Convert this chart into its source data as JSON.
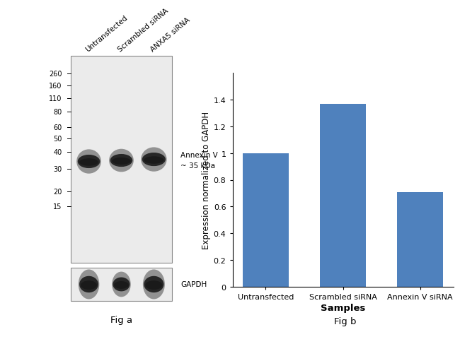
{
  "fig_a_label": "Fig a",
  "fig_b_label": "Fig b",
  "bar_categories": [
    "Untransfected",
    "Scrambled siRNA",
    "Annexin V siRNA"
  ],
  "bar_values": [
    1.0,
    1.37,
    0.71
  ],
  "bar_color": "#4f81bd",
  "ylabel": "Expression normalized to GAPDH",
  "xlabel": "Samples",
  "ylim": [
    0,
    1.6
  ],
  "yticks": [
    0,
    0.2,
    0.4,
    0.6,
    0.8,
    1.0,
    1.2,
    1.4
  ],
  "wb_marker_labels": [
    "260",
    "160",
    "110",
    "80",
    "60",
    "50",
    "40",
    "30",
    "20",
    "15"
  ],
  "wb_marker_positions_norm": [
    0.915,
    0.855,
    0.795,
    0.73,
    0.655,
    0.6,
    0.535,
    0.455,
    0.345,
    0.275
  ],
  "annexin_v_label": "Annexin V",
  "annexin_v_kda": "~ 35 kDa",
  "gapdh_label": "GAPDH",
  "col_labels": [
    "Untransfected",
    "Scrambled siRNA",
    "ANXA5 siRNA"
  ],
  "background_color": "#ffffff",
  "wb_bg": "#ebebeb",
  "band_color_dark": "#1a1a1a",
  "band_color_mid": "#3a3a3a"
}
